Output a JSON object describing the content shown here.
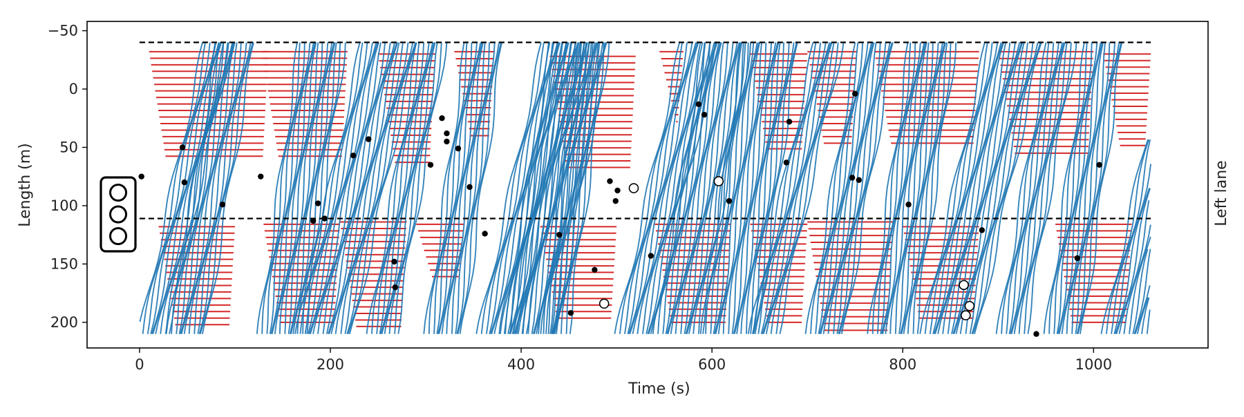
{
  "chart_data": {
    "type": "line",
    "title": "",
    "xlabel": "Time (s)",
    "ylabel": "Length (m)",
    "side_label": "Left lane",
    "xlim": [
      -55,
      1120
    ],
    "ylim": [
      222,
      -58
    ],
    "y_inverted": true,
    "grid": false,
    "x_ticks": [
      0,
      200,
      400,
      600,
      800,
      1000
    ],
    "x_tick_labels": [
      "0",
      "200",
      "400",
      "600",
      "800",
      "1000"
    ],
    "y_ticks": [
      -50,
      0,
      50,
      100,
      150,
      200
    ],
    "y_tick_labels": [
      "−50",
      "0",
      "50",
      "100",
      "150",
      "200"
    ],
    "stop_lines": [
      -40,
      111
    ],
    "trajectory_time_range": [
      0,
      1060
    ],
    "trajectory_length_range": [
      -40,
      210
    ],
    "series": [
      {
        "role": "moving",
        "color": "#1f77b4"
      },
      {
        "role": "stopped",
        "color": "#d62728"
      }
    ],
    "lane_change_in": [
      [
        2,
        75
      ],
      [
        45,
        50
      ],
      [
        47,
        80
      ],
      [
        87,
        99
      ],
      [
        127,
        75
      ],
      [
        182,
        113
      ],
      [
        187,
        98
      ],
      [
        194,
        111
      ],
      [
        224,
        57
      ],
      [
        240,
        43
      ],
      [
        267,
        148
      ],
      [
        268,
        170
      ],
      [
        305,
        65
      ],
      [
        317,
        25
      ],
      [
        322,
        38
      ],
      [
        322,
        45
      ],
      [
        334,
        51
      ],
      [
        346,
        84
      ],
      [
        362,
        124
      ],
      [
        440,
        125
      ],
      [
        452,
        192
      ],
      [
        477,
        155
      ],
      [
        493,
        79
      ],
      [
        499,
        96
      ],
      [
        501,
        87
      ],
      [
        536,
        143
      ],
      [
        586,
        13
      ],
      [
        592,
        22
      ],
      [
        618,
        96
      ],
      [
        678,
        63
      ],
      [
        681,
        28
      ],
      [
        747,
        76
      ],
      [
        750,
        4
      ],
      [
        754,
        78
      ],
      [
        806,
        99
      ],
      [
        883,
        121
      ],
      [
        940,
        210
      ],
      [
        983,
        145
      ],
      [
        1006,
        65
      ]
    ],
    "lane_change_out": [
      [
        487,
        184
      ],
      [
        518,
        85
      ],
      [
        607,
        79
      ],
      [
        864,
        168
      ],
      [
        866,
        194
      ],
      [
        870,
        186
      ]
    ],
    "signal_lights": 3,
    "trajectories": []
  }
}
